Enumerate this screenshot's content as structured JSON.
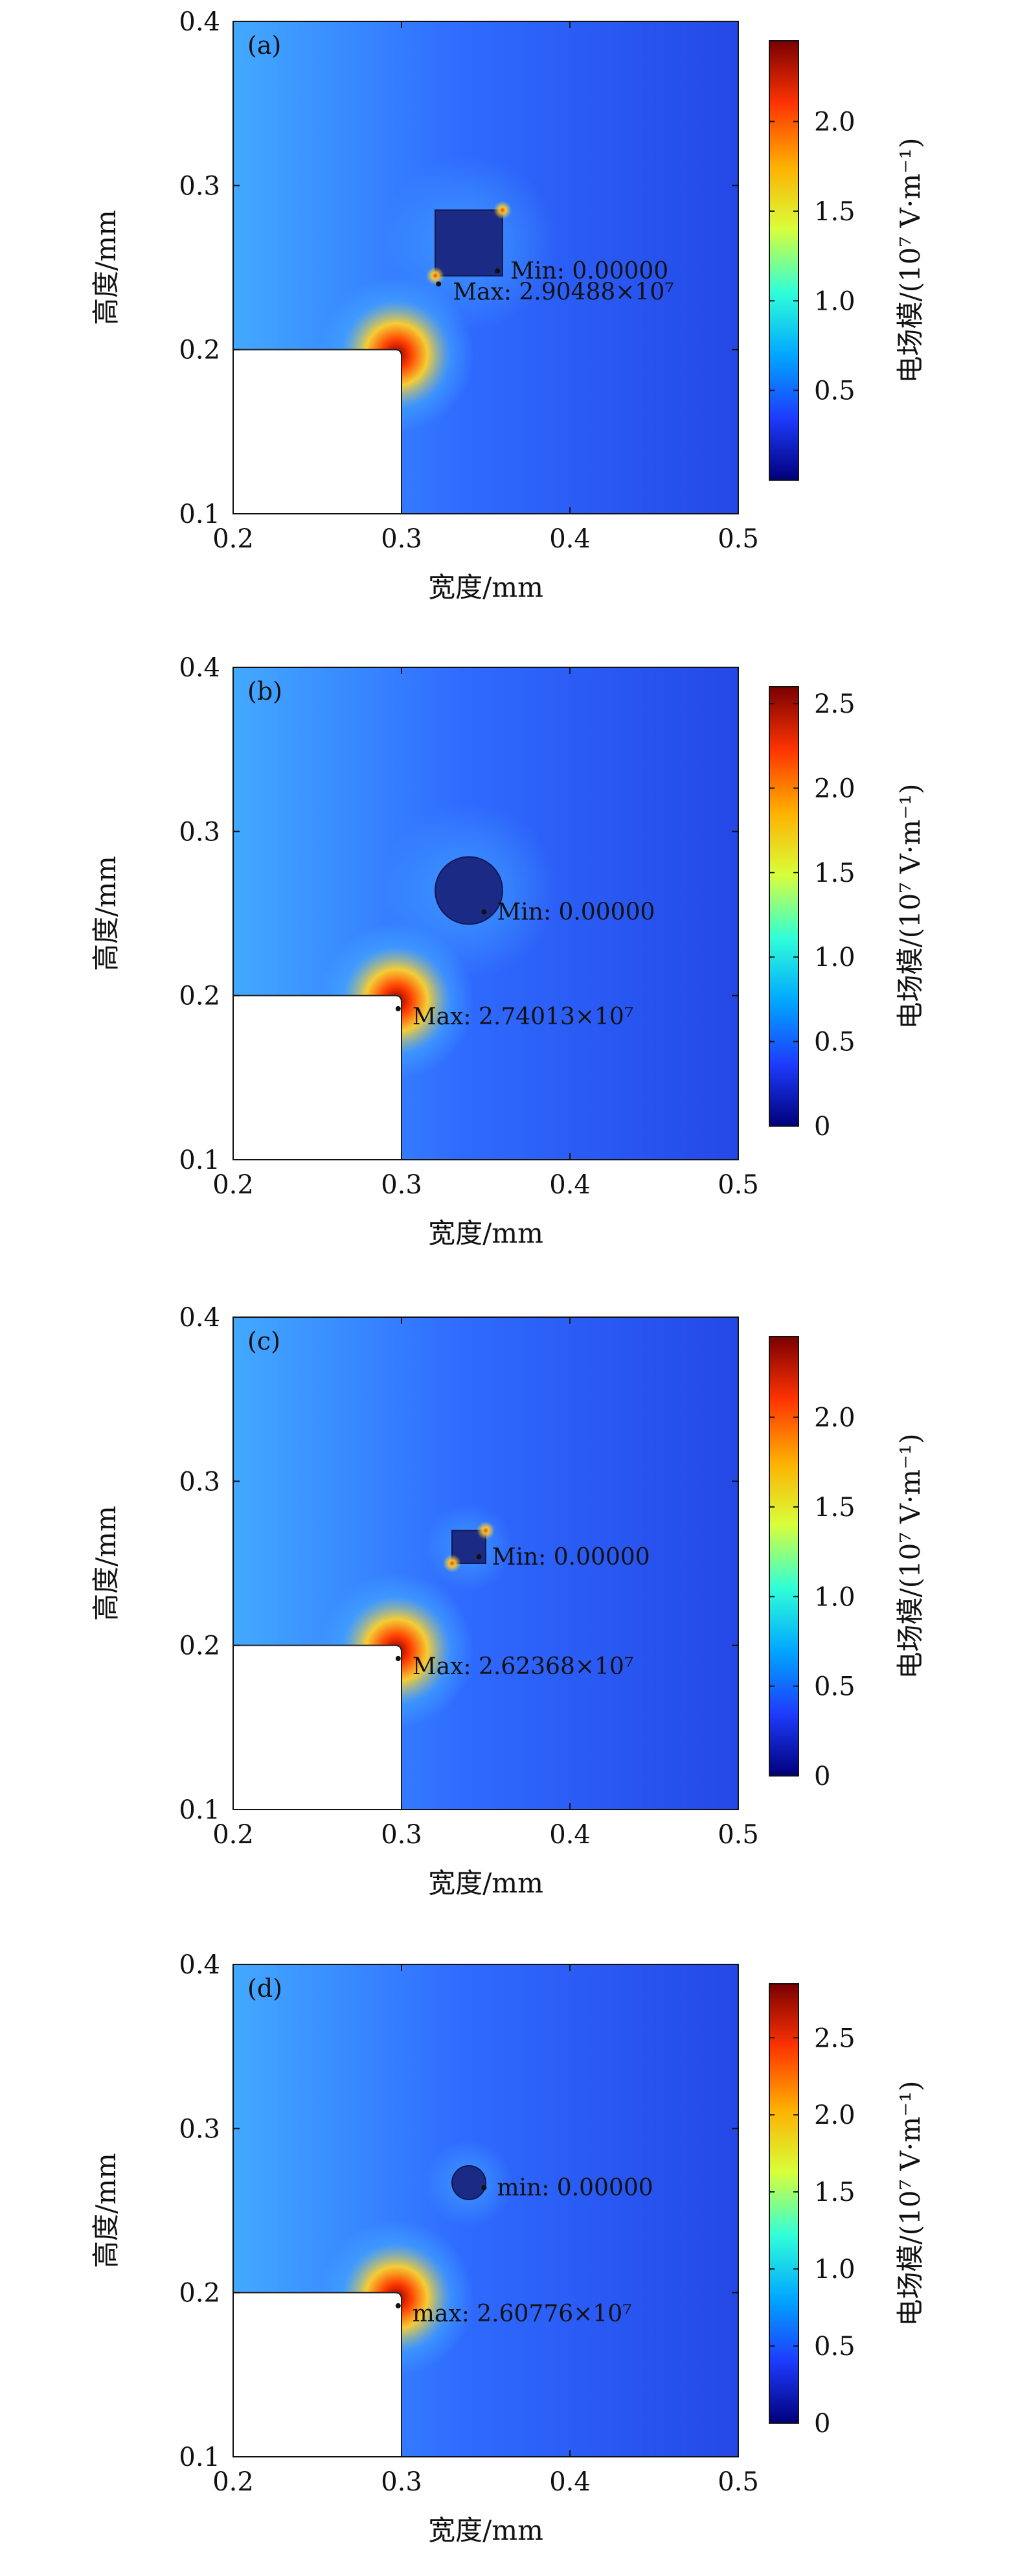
{
  "colors": {
    "field_base": "#2f6bff",
    "field_right": "#2448e6",
    "field_light": "#43a9ff",
    "obstacle": "#1b2a85",
    "hot_center": "#8b0000",
    "hot_mid": "#ff3c00",
    "hot_outer": "#ffd12a",
    "colorbar_stops": [
      "#00007a",
      "#1e3cff",
      "#00a8ff",
      "#31ffd7",
      "#d8ff3a",
      "#ffb000",
      "#ff3300",
      "#7a0000"
    ]
  },
  "chart_data": [
    {
      "type": "heatmap",
      "panel_label": "(a)",
      "xlabel": "宽度/mm",
      "ylabel": "高度/mm",
      "xlim": [
        0.2,
        0.5
      ],
      "ylim": [
        0.1,
        0.4
      ],
      "xticks": [
        "0.2",
        "0.3",
        "0.4",
        "0.5"
      ],
      "yticks": [
        "0.1",
        "0.2",
        "0.3",
        "0.4"
      ],
      "colorbar_label": "电场模/(10⁷ V·m⁻¹)",
      "colorbar_range": [
        0,
        2.45
      ],
      "colorbar_ticks": [
        "0.5",
        "1.0",
        "1.5",
        "2.0"
      ],
      "obstacle": {
        "shape": "square",
        "x0": 0.32,
        "x1": 0.36,
        "y0": 0.245,
        "y1": 0.285
      },
      "hotspot": {
        "x": 0.297,
        "y": 0.197
      },
      "min_annotation": {
        "text": "Min: 0.00000",
        "x": 0.357,
        "y": 0.248
      },
      "max_annotation": {
        "text": "Max: 2.90488×10⁷",
        "x": 0.322,
        "y": 0.24
      }
    },
    {
      "type": "heatmap",
      "panel_label": "(b)",
      "xlabel": "宽度/mm",
      "ylabel": "高度/mm",
      "xlim": [
        0.2,
        0.5
      ],
      "ylim": [
        0.1,
        0.4
      ],
      "xticks": [
        "0.2",
        "0.3",
        "0.4",
        "0.5"
      ],
      "yticks": [
        "0.1",
        "0.2",
        "0.3",
        "0.4"
      ],
      "colorbar_label": "电场模/(10⁷ V·m⁻¹)",
      "colorbar_range": [
        0,
        2.6
      ],
      "colorbar_ticks": [
        "0",
        "0.5",
        "1.0",
        "1.5",
        "2.0",
        "2.5"
      ],
      "obstacle": {
        "shape": "circle",
        "cx": 0.34,
        "cy": 0.264,
        "r": 0.02
      },
      "hotspot": {
        "x": 0.297,
        "y": 0.197
      },
      "min_annotation": {
        "text": "Min: 0.00000",
        "x": 0.349,
        "y": 0.251
      },
      "max_annotation": {
        "text": "Max: 2.74013×10⁷",
        "x": 0.298,
        "y": 0.192
      }
    },
    {
      "type": "heatmap",
      "panel_label": "(c)",
      "xlabel": "宽度/mm",
      "ylabel": "高度/mm",
      "xlim": [
        0.2,
        0.5
      ],
      "ylim": [
        0.1,
        0.4
      ],
      "xticks": [
        "0.2",
        "0.3",
        "0.4",
        "0.5"
      ],
      "yticks": [
        "0.1",
        "0.2",
        "0.3",
        "0.4"
      ],
      "colorbar_label": "电场模/(10⁷ V·m⁻¹)",
      "colorbar_range": [
        0,
        2.45
      ],
      "colorbar_ticks": [
        "0",
        "0.5",
        "1.0",
        "1.5",
        "2.0"
      ],
      "obstacle": {
        "shape": "square",
        "x0": 0.33,
        "x1": 0.35,
        "y0": 0.25,
        "y1": 0.27
      },
      "hotspot": {
        "x": 0.297,
        "y": 0.197
      },
      "min_annotation": {
        "text": "Min: 0.00000",
        "x": 0.346,
        "y": 0.254
      },
      "max_annotation": {
        "text": "Max: 2.62368×10⁷",
        "x": 0.298,
        "y": 0.192
      }
    },
    {
      "type": "heatmap",
      "panel_label": "(d)",
      "xlabel": "宽度/mm",
      "ylabel": "高度/mm",
      "xlim": [
        0.2,
        0.5
      ],
      "ylim": [
        0.1,
        0.4
      ],
      "xticks": [
        "0.2",
        "0.3",
        "0.4",
        "0.5"
      ],
      "yticks": [
        "0.1",
        "0.2",
        "0.3",
        "0.4"
      ],
      "colorbar_label": "电场模/(10⁷ V·m⁻¹)",
      "colorbar_range": [
        0,
        2.85
      ],
      "colorbar_ticks": [
        "0",
        "0.5",
        "1.0",
        "1.5",
        "2.0",
        "2.5"
      ],
      "obstacle": {
        "shape": "circle",
        "cx": 0.34,
        "cy": 0.267,
        "r": 0.01
      },
      "hotspot": {
        "x": 0.297,
        "y": 0.197
      },
      "min_annotation": {
        "text": "min: 0.00000",
        "x": 0.349,
        "y": 0.264
      },
      "max_annotation": {
        "text": "max: 2.60776×10⁷",
        "x": 0.298,
        "y": 0.192
      }
    }
  ]
}
